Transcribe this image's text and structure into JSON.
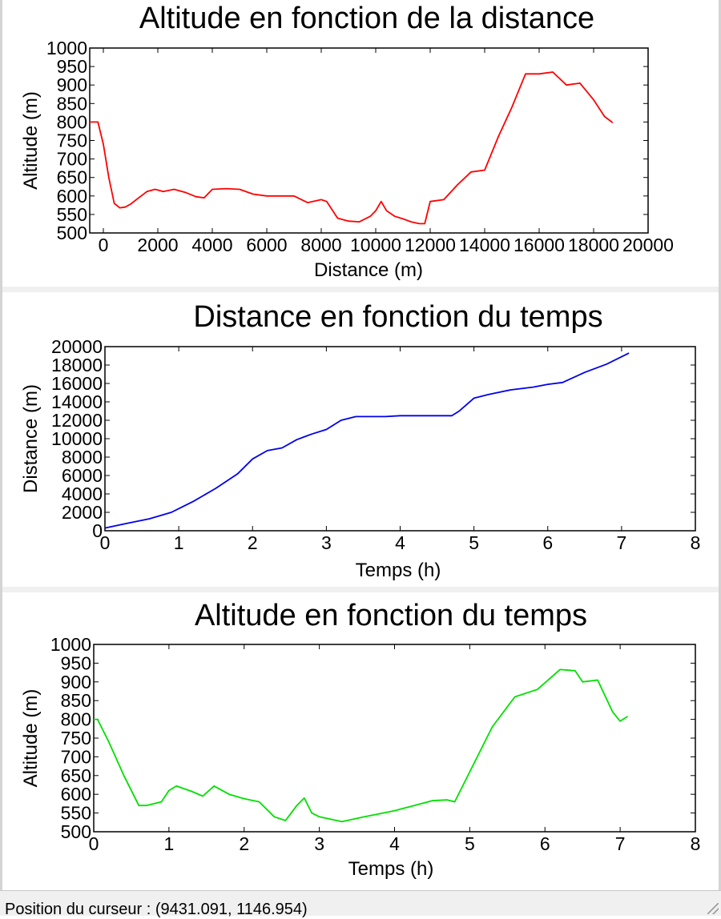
{
  "colors": {
    "series1": "#ff0000",
    "series2": "#0000ee",
    "series3": "#00e000"
  },
  "status": {
    "text": "Position du curseur : (9431.091, 1146.954)"
  },
  "chart_data": [
    {
      "type": "line",
      "title": "Altitude en fonction de la distance",
      "xlabel": "Distance (m)",
      "ylabel": "Altitude (m)",
      "xlim": [
        -500,
        20000
      ],
      "ylim": [
        500,
        1000
      ],
      "x_ticks": [
        0,
        2000,
        4000,
        6000,
        8000,
        10000,
        12000,
        14000,
        16000,
        18000,
        20000
      ],
      "y_ticks": [
        500,
        550,
        600,
        650,
        700,
        750,
        800,
        850,
        900,
        950,
        1000
      ],
      "x_tick_labels": [
        "0",
        "2000",
        "4000",
        "6000",
        "8000",
        "10000",
        "12000",
        "14000",
        "16000",
        "18000",
        "20000"
      ],
      "y_tick_labels": [
        "500",
        "550",
        "600",
        "650",
        "700",
        "750",
        "800",
        "850",
        "900",
        "950",
        "1000"
      ],
      "grid": false,
      "series": [
        {
          "color": "#ff0000",
          "x": [
            -500,
            -200,
            0,
            200,
            400,
            600,
            800,
            1000,
            1300,
            1600,
            1900,
            2200,
            2600,
            3000,
            3400,
            3700,
            4000,
            4500,
            5000,
            5500,
            6000,
            6500,
            7000,
            7500,
            8000,
            8200,
            8600,
            9000,
            9400,
            9800,
            10000,
            10200,
            10400,
            10700,
            11000,
            11300,
            11600,
            11800,
            12000,
            12500,
            13000,
            13500,
            14000,
            14500,
            15000,
            15500,
            16000,
            16500,
            17000,
            17500,
            18000,
            18400,
            18700
          ],
          "y": [
            800,
            800,
            740,
            650,
            580,
            568,
            570,
            578,
            595,
            612,
            618,
            612,
            618,
            610,
            598,
            595,
            618,
            620,
            618,
            605,
            600,
            600,
            600,
            582,
            590,
            585,
            540,
            532,
            530,
            545,
            560,
            585,
            560,
            545,
            538,
            530,
            525,
            525,
            585,
            590,
            630,
            665,
            670,
            760,
            840,
            930,
            930,
            935,
            900,
            905,
            860,
            815,
            798
          ]
        }
      ]
    },
    {
      "type": "line",
      "title": "Distance en fonction du temps",
      "xlabel": "Temps (h)",
      "ylabel": "Distance (m)",
      "xlim": [
        0,
        8
      ],
      "ylim": [
        0,
        20000
      ],
      "x_ticks": [
        0,
        1,
        2,
        3,
        4,
        5,
        6,
        7,
        8
      ],
      "y_ticks": [
        0,
        2000,
        4000,
        6000,
        8000,
        10000,
        12000,
        14000,
        16000,
        18000,
        20000
      ],
      "x_tick_labels": [
        "0",
        "1",
        "2",
        "3",
        "4",
        "5",
        "6",
        "7",
        "8"
      ],
      "y_tick_labels": [
        "0",
        "2000",
        "4000",
        "6000",
        "8000",
        "10000",
        "12000",
        "14000",
        "16000",
        "18000",
        "20000"
      ],
      "grid": false,
      "series": [
        {
          "color": "#0000ee",
          "x": [
            0,
            0.3,
            0.6,
            0.9,
            1.2,
            1.5,
            1.8,
            2.0,
            2.2,
            2.4,
            2.6,
            2.8,
            3.0,
            3.2,
            3.4,
            3.6,
            3.8,
            4.0,
            4.4,
            4.7,
            4.8,
            5.0,
            5.2,
            5.5,
            5.8,
            6.0,
            6.2,
            6.5,
            6.8,
            7.1
          ],
          "y": [
            300,
            800,
            1300,
            2000,
            3200,
            4600,
            6200,
            7800,
            8700,
            9000,
            9900,
            10500,
            11000,
            12000,
            12400,
            12400,
            12400,
            12500,
            12500,
            12500,
            13000,
            14400,
            14800,
            15300,
            15600,
            15900,
            16100,
            17200,
            18100,
            19300
          ]
        }
      ]
    },
    {
      "type": "line",
      "title": "Altitude en fonction du temps",
      "xlabel": "Temps (h)",
      "ylabel": "Altitude (m)",
      "xlim": [
        0,
        8
      ],
      "ylim": [
        500,
        1000
      ],
      "x_ticks": [
        0,
        1,
        2,
        3,
        4,
        5,
        6,
        7,
        8
      ],
      "y_ticks": [
        500,
        550,
        600,
        650,
        700,
        750,
        800,
        850,
        900,
        950,
        1000
      ],
      "x_tick_labels": [
        "0",
        "1",
        "2",
        "3",
        "4",
        "5",
        "6",
        "7",
        "8"
      ],
      "y_tick_labels": [
        "500",
        "550",
        "600",
        "650",
        "700",
        "750",
        "800",
        "850",
        "900",
        "950",
        "1000"
      ],
      "grid": false,
      "series": [
        {
          "color": "#00e000",
          "x": [
            0,
            0.05,
            0.2,
            0.4,
            0.6,
            0.7,
            0.9,
            1.0,
            1.1,
            1.3,
            1.45,
            1.6,
            1.8,
            2.0,
            2.2,
            2.4,
            2.55,
            2.7,
            2.8,
            2.9,
            3.0,
            3.3,
            3.6,
            4.0,
            4.5,
            4.7,
            4.8,
            5.0,
            5.3,
            5.6,
            5.9,
            6.2,
            6.4,
            6.5,
            6.7,
            6.9,
            7.0,
            7.1
          ],
          "y": [
            800,
            800,
            740,
            650,
            570,
            570,
            580,
            610,
            622,
            608,
            595,
            622,
            600,
            588,
            580,
            540,
            530,
            570,
            590,
            550,
            540,
            527,
            540,
            556,
            583,
            585,
            580,
            660,
            780,
            860,
            880,
            933,
            930,
            900,
            905,
            820,
            795,
            808
          ]
        }
      ]
    }
  ]
}
